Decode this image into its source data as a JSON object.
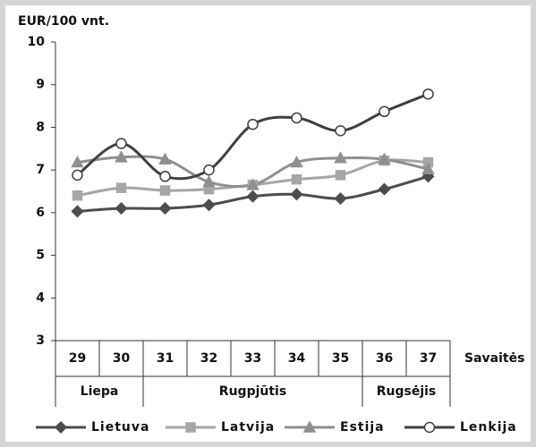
{
  "chart_data": {
    "type": "line",
    "y_label": "EUR/100 vnt.",
    "x_label": "Savaitės",
    "categories": [
      "29",
      "30",
      "31",
      "32",
      "33",
      "34",
      "35",
      "36",
      "37"
    ],
    "groups": [
      {
        "label": "Liepa",
        "from": "29",
        "to": "30"
      },
      {
        "label": "Rugpjūtis",
        "from": "31",
        "to": "35"
      },
      {
        "label": "Rugsėjis",
        "from": "36",
        "to": "37"
      }
    ],
    "ylim": [
      3,
      10
    ],
    "yticks": [
      3,
      4,
      5,
      6,
      7,
      8,
      9,
      10
    ],
    "grid": false,
    "smooth": true,
    "legend": "bottom",
    "series": [
      {
        "name": "Lietuva",
        "color": "#4d4d4d",
        "marker": "diamond",
        "values": [
          6.03,
          6.1,
          6.1,
          6.18,
          6.38,
          6.43,
          6.33,
          6.55,
          6.85
        ]
      },
      {
        "name": "Latvija",
        "color": "#a6a6a6",
        "marker": "square",
        "values": [
          6.4,
          6.58,
          6.52,
          6.55,
          6.65,
          6.78,
          6.88,
          7.22,
          7.18
        ]
      },
      {
        "name": "Estija",
        "color": "#8f8f8f",
        "marker": "triangle",
        "values": [
          7.18,
          7.3,
          7.25,
          6.72,
          6.65,
          7.18,
          7.28,
          7.25,
          7.02
        ]
      },
      {
        "name": "Lenkija",
        "color": "#3f3f3f",
        "marker": "circle",
        "values": [
          6.88,
          7.62,
          6.85,
          7.0,
          8.07,
          8.22,
          7.92,
          8.37,
          8.78
        ]
      }
    ]
  }
}
